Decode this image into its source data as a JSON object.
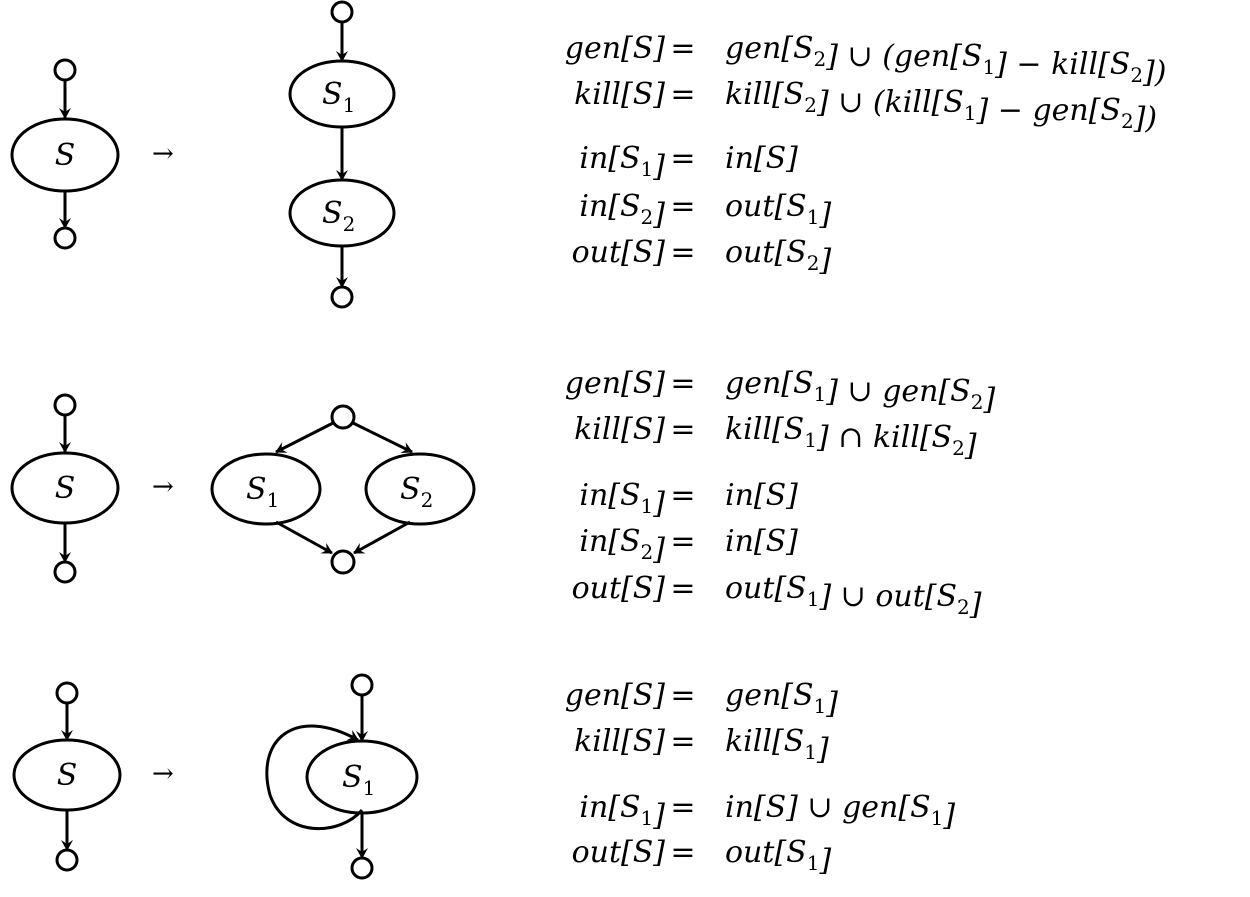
{
  "symbols": {
    "transform_arrow": "→",
    "node_glyph": "circle-node"
  },
  "rules": [
    {
      "id": "sequence",
      "before_node": {
        "letter": "S",
        "sub": ""
      },
      "after_nodes": [
        {
          "letter": "S",
          "sub": "1"
        },
        {
          "letter": "S",
          "sub": "2"
        }
      ],
      "equations": [
        "gen[S] = gen[S2] ∪ (gen[S1] − kill[S2])",
        "kill[S] = kill[S2] ∪ (kill[S1] − gen[S2])",
        "in[S1] = in[S]",
        "in[S2] = out[S1]",
        "out[S] = out[S2]"
      ]
    },
    {
      "id": "branch",
      "before_node": {
        "letter": "S",
        "sub": ""
      },
      "after_nodes": [
        {
          "letter": "S",
          "sub": "1"
        },
        {
          "letter": "S",
          "sub": "2"
        }
      ],
      "equations": [
        "gen[S] = gen[S1] ∪ gen[S2]",
        "kill[S] = kill[S1] ∩ kill[S2]",
        "in[S1] = in[S]",
        "in[S2] = in[S]",
        "out[S] = out[S1] ∪ out[S2]"
      ]
    },
    {
      "id": "loop",
      "before_node": {
        "letter": "S",
        "sub": ""
      },
      "after_nodes": [
        {
          "letter": "S",
          "sub": "1"
        }
      ],
      "equations": [
        "gen[S] = gen[S1]",
        "kill[S] = kill[S1]",
        "in[S1] = in[S] ∪ gen[S1]",
        "out[S] = out[S1]"
      ]
    }
  ]
}
